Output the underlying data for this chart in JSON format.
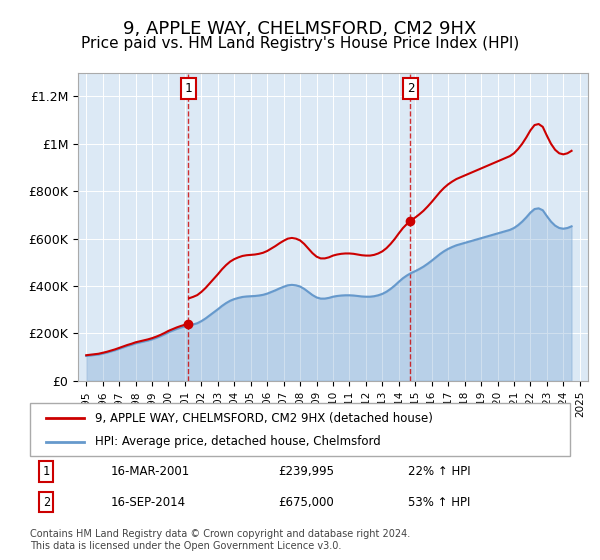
{
  "title": "9, APPLE WAY, CHELMSFORD, CM2 9HX",
  "subtitle": "Price paid vs. HM Land Registry's House Price Index (HPI)",
  "title_fontsize": 13,
  "subtitle_fontsize": 11,
  "background_color": "#ffffff",
  "plot_bg_color": "#dce9f5",
  "sale1_date": "16-MAR-2001",
  "sale1_price": 239995,
  "sale1_hpi_pct": "22%",
  "sale2_date": "16-SEP-2014",
  "sale2_price": 675000,
  "sale2_hpi_pct": "53%",
  "sale1_year": 2001.21,
  "sale2_year": 2014.71,
  "ylabel_ticks": [
    0,
    200000,
    400000,
    600000,
    800000,
    1000000,
    1200000
  ],
  "ylabel_labels": [
    "£0",
    "£200K",
    "£400K",
    "£600K",
    "£800K",
    "£1M",
    "£1.2M"
  ],
  "xlim": [
    1994.5,
    2025.5
  ],
  "ylim": [
    0,
    1300000
  ],
  "legend_line1": "9, APPLE WAY, CHELMSFORD, CM2 9HX (detached house)",
  "legend_line2": "HPI: Average price, detached house, Chelmsford",
  "footer": "Contains HM Land Registry data © Crown copyright and database right 2024.\nThis data is licensed under the Open Government Licence v3.0.",
  "red_color": "#cc0000",
  "blue_color": "#6699cc",
  "hpi_x": [
    1995,
    1995.25,
    1995.5,
    1995.75,
    1996,
    1996.25,
    1996.5,
    1996.75,
    1997,
    1997.25,
    1997.5,
    1997.75,
    1998,
    1998.25,
    1998.5,
    1998.75,
    1999,
    1999.25,
    1999.5,
    1999.75,
    2000,
    2000.25,
    2000.5,
    2000.75,
    2001,
    2001.25,
    2001.5,
    2001.75,
    2002,
    2002.25,
    2002.5,
    2002.75,
    2003,
    2003.25,
    2003.5,
    2003.75,
    2004,
    2004.25,
    2004.5,
    2004.75,
    2005,
    2005.25,
    2005.5,
    2005.75,
    2006,
    2006.25,
    2006.5,
    2006.75,
    2007,
    2007.25,
    2007.5,
    2007.75,
    2008,
    2008.25,
    2008.5,
    2008.75,
    2009,
    2009.25,
    2009.5,
    2009.75,
    2010,
    2010.25,
    2010.5,
    2010.75,
    2011,
    2011.25,
    2011.5,
    2011.75,
    2012,
    2012.25,
    2012.5,
    2012.75,
    2013,
    2013.25,
    2013.5,
    2013.75,
    2014,
    2014.25,
    2014.5,
    2014.75,
    2015,
    2015.25,
    2015.5,
    2015.75,
    2016,
    2016.25,
    2016.5,
    2016.75,
    2017,
    2017.25,
    2017.5,
    2017.75,
    2018,
    2018.25,
    2018.5,
    2018.75,
    2019,
    2019.25,
    2019.5,
    2019.75,
    2020,
    2020.25,
    2020.5,
    2020.75,
    2021,
    2021.25,
    2021.5,
    2021.75,
    2022,
    2022.25,
    2022.5,
    2022.75,
    2023,
    2023.25,
    2023.5,
    2023.75,
    2024,
    2024.25,
    2024.5
  ],
  "hpi_y": [
    105000,
    107000,
    109000,
    111000,
    115000,
    119000,
    124000,
    129000,
    135000,
    141000,
    147000,
    152000,
    158000,
    162000,
    166000,
    170000,
    175000,
    181000,
    188000,
    196000,
    205000,
    212000,
    219000,
    225000,
    230000,
    234000,
    238000,
    243000,
    252000,
    263000,
    276000,
    289000,
    302000,
    316000,
    328000,
    338000,
    345000,
    350000,
    354000,
    356000,
    357000,
    358000,
    360000,
    363000,
    368000,
    375000,
    382000,
    390000,
    397000,
    403000,
    405000,
    403000,
    398000,
    388000,
    375000,
    362000,
    352000,
    347000,
    347000,
    350000,
    355000,
    358000,
    360000,
    361000,
    361000,
    360000,
    358000,
    356000,
    355000,
    355000,
    357000,
    361000,
    367000,
    376000,
    388000,
    402000,
    418000,
    433000,
    445000,
    455000,
    463000,
    472000,
    482000,
    494000,
    507000,
    521000,
    535000,
    547000,
    557000,
    565000,
    572000,
    577000,
    582000,
    587000,
    592000,
    597000,
    602000,
    607000,
    612000,
    617000,
    622000,
    627000,
    632000,
    637000,
    645000,
    657000,
    672000,
    690000,
    710000,
    725000,
    728000,
    720000,
    695000,
    672000,
    655000,
    645000,
    642000,
    645000,
    652000
  ],
  "red_x": [
    1995,
    2001.21,
    2001.21,
    2014.71,
    2014.71,
    2024.75
  ],
  "red_y": [
    105000,
    196000,
    239995,
    550000,
    675000,
    970000
  ]
}
